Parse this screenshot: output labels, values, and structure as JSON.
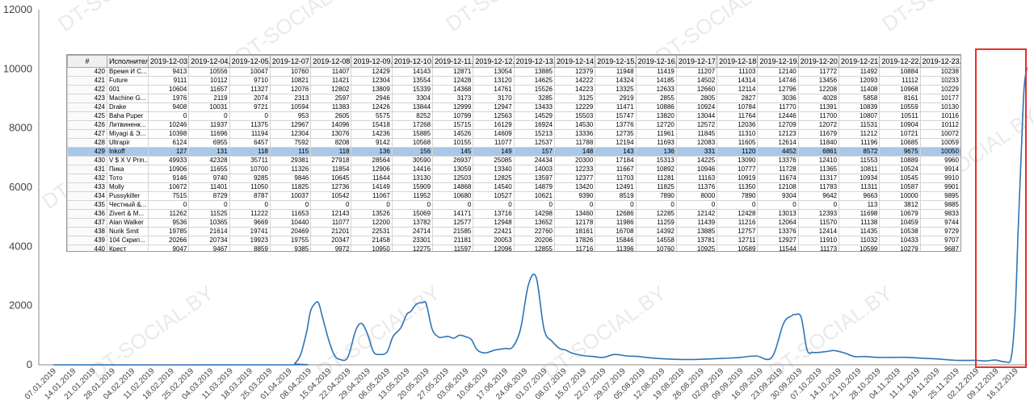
{
  "chart_data": {
    "type": "line",
    "ylim": [
      0,
      12000
    ],
    "yticks": [
      0,
      2000,
      4000,
      6000,
      8000,
      10000,
      12000
    ],
    "grid": false,
    "color": "#2e75b6",
    "xlabels": [
      "07.01.2019",
      "14.01.2019",
      "21.01.2019",
      "28.01.2019",
      "04.02.2019",
      "11.02.2019",
      "18.02.2019",
      "25.02.2019",
      "04.03.2019",
      "11.03.2019",
      "18.03.2019",
      "25.03.2019",
      "01.04.2019",
      "08.04.2019",
      "15.04.2019",
      "22.04.2019",
      "29.04.2019",
      "06.05.2019",
      "13.05.2019",
      "20.05.2019",
      "27.05.2019",
      "03.06.2019",
      "10.06.2019",
      "17.06.2019",
      "24.06.2019",
      "01.07.2019",
      "08.07.2019",
      "15.07.2019",
      "22.07.2019",
      "29.07.2019",
      "05.08.2019",
      "12.08.2019",
      "19.08.2019",
      "26.08.2019",
      "02.09.2019",
      "09.09.2019",
      "16.09.2019",
      "23.09.2019",
      "30.09.2019",
      "07.10.2019",
      "14.10.2019",
      "21.10.2019",
      "28.10.2019",
      "04.11.2019",
      "11.11.2019",
      "18.11.2019",
      "25.11.2019",
      "02.12.2019",
      "09.12.2019",
      "16.12.2019"
    ],
    "x": [
      0,
      12,
      12.3,
      12.6,
      12.9,
      13.1,
      13.3,
      13.5,
      13.7,
      14.0,
      14.3,
      14.6,
      15.0,
      15.4,
      15.7,
      16.0,
      16.3,
      16.6,
      17.0,
      17.3,
      17.7,
      18.0,
      18.2,
      18.5,
      18.8,
      19.0,
      19.3,
      19.6,
      19.8,
      20.1,
      20.4,
      20.7,
      21.0,
      21.3,
      21.6,
      22.0,
      22.5,
      23.0,
      23.4,
      23.8,
      24.2,
      24.6,
      25.0,
      25.4,
      25.8,
      26.1,
      26.4,
      26.7,
      27.1,
      27.5,
      28.0,
      28.6,
      29.2,
      29.8,
      30.5,
      31.2,
      32.0,
      32.7,
      33.5,
      34.2,
      35.0,
      35.8,
      36.6,
      37.2,
      37.6,
      37.8,
      38.1,
      38.4,
      38.7,
      39.0,
      39.4,
      39.8,
      40.3,
      40.8,
      41.3,
      42.0,
      42.8,
      43.5,
      44.3,
      45.0,
      46.0,
      47.0,
      47.5,
      48.0,
      48.5,
      48.8,
      49.0,
      49.15,
      49.3,
      49.45,
      49.6
    ],
    "y": [
      0,
      0,
      50,
      350,
      1100,
      1800,
      2050,
      2100,
      1650,
      900,
      350,
      180,
      250,
      1150,
      1400,
      1050,
      450,
      350,
      430,
      950,
      1250,
      1700,
      1800,
      2050,
      2100,
      2050,
      1200,
      950,
      930,
      960,
      900,
      1000,
      950,
      850,
      500,
      400,
      500,
      550,
      600,
      1200,
      2700,
      2950,
      1200,
      800,
      550,
      500,
      400,
      350,
      300,
      280,
      250,
      350,
      300,
      280,
      230,
      200,
      180,
      180,
      200,
      220,
      250,
      300,
      250,
      1400,
      1650,
      1700,
      1600,
      500,
      420,
      420,
      450,
      480,
      400,
      280,
      280,
      250,
      250,
      250,
      220,
      200,
      150,
      150,
      130,
      160,
      100,
      250,
      1800,
      4500,
      7000,
      9300,
      10050
    ],
    "table": {
      "headers": [
        "#",
        "Исполнитель",
        "2019-12-03...",
        "2019-12-04...",
        "2019-12-05...",
        "2019-12-07...",
        "2019-12-08...",
        "2019-12-09...",
        "2019-12-10...",
        "2019-12-11...",
        "2019-12-12...",
        "2019-12-13...",
        "2019-12-14...",
        "2019-12-15...",
        "2019-12-16...",
        "2019-12-17...",
        "2019-12-18...",
        "2019-12-19...",
        "2019-12-20...",
        "2019-12-21...",
        "2019-12-22...",
        "2019-12-23..."
      ],
      "selected_index": 9,
      "rows": [
        [
          "420",
          "Время И С...",
          "9413",
          "10556",
          "10047",
          "10760",
          "11407",
          "12429",
          "14143",
          "12871",
          "13054",
          "13885",
          "12379",
          "11948",
          "11419",
          "11207",
          "11103",
          "12140",
          "11772",
          "11492",
          "10884",
          "10238"
        ],
        [
          "421",
          "Future",
          "9111",
          "10112",
          "9710",
          "10821",
          "11421",
          "12304",
          "13554",
          "12428",
          "13120",
          "14625",
          "14222",
          "14324",
          "14185",
          "14502",
          "14314",
          "14746",
          "13456",
          "12093",
          "11112",
          "10233"
        ],
        [
          "422",
          "001",
          "10604",
          "11657",
          "11327",
          "12076",
          "12802",
          "13809",
          "15339",
          "14368",
          "14761",
          "15526",
          "14223",
          "13325",
          "12633",
          "12660",
          "12114",
          "12796",
          "12208",
          "11408",
          "10968",
          "10229"
        ],
        [
          "423",
          "Machine G...",
          "1976",
          "2119",
          "2074",
          "2313",
          "2597",
          "2946",
          "3304",
          "3173",
          "3170",
          "3285",
          "3125",
          "2919",
          "2855",
          "2805",
          "2827",
          "3036",
          "4028",
          "5858",
          "8161",
          "10177"
        ],
        [
          "424",
          "Drake",
          "9408",
          "10031",
          "9721",
          "10594",
          "11383",
          "12426",
          "13844",
          "12999",
          "12947",
          "13433",
          "12229",
          "11471",
          "10886",
          "10924",
          "10784",
          "11770",
          "11391",
          "10839",
          "10559",
          "10130"
        ],
        [
          "425",
          "Baha Puper",
          "0",
          "0",
          "0",
          "953",
          "2605",
          "5575",
          "8252",
          "10799",
          "12563",
          "14529",
          "15503",
          "15747",
          "13820",
          "13044",
          "11764",
          "12446",
          "11700",
          "10807",
          "10511",
          "10116"
        ],
        [
          "426",
          "Литвиненк...",
          "10246",
          "11937",
          "11375",
          "12967",
          "14096",
          "15418",
          "17268",
          "15715",
          "16129",
          "16924",
          "14530",
          "13776",
          "12720",
          "12572",
          "12036",
          "12709",
          "12072",
          "11531",
          "10904",
          "10112"
        ],
        [
          "427",
          "Miyagi & Э...",
          "10398",
          "11696",
          "11194",
          "12304",
          "13076",
          "14236",
          "15885",
          "14526",
          "14609",
          "15213",
          "13336",
          "12735",
          "11961",
          "11845",
          "11310",
          "12123",
          "11679",
          "11212",
          "10721",
          "10072"
        ],
        [
          "428",
          "Ultrapir",
          "6124",
          "6955",
          "6457",
          "7592",
          "8208",
          "9142",
          "10568",
          "10155",
          "11077",
          "12537",
          "11788",
          "12194",
          "11693",
          "12083",
          "11605",
          "12614",
          "11840",
          "11196",
          "10685",
          "10059"
        ],
        [
          "429",
          "Inkoff",
          "127",
          "131",
          "118",
          "115",
          "118",
          "136",
          "156",
          "145",
          "149",
          "157",
          "148",
          "143",
          "136",
          "331",
          "1120",
          "4452",
          "6861",
          "8572",
          "9675",
          "10050"
        ],
        [
          "430",
          "V $ X V Prin...",
          "49933",
          "42328",
          "35711",
          "29381",
          "27918",
          "28564",
          "30590",
          "26937",
          "25085",
          "24434",
          "20300",
          "17184",
          "15313",
          "14225",
          "13090",
          "13376",
          "12410",
          "11553",
          "10889",
          "9960"
        ],
        [
          "431",
          "Пика",
          "10906",
          "11655",
          "10700",
          "11326",
          "11854",
          "12906",
          "14416",
          "13059",
          "13340",
          "14003",
          "12233",
          "11667",
          "10892",
          "10946",
          "10777",
          "11728",
          "11365",
          "10811",
          "10524",
          "9914"
        ],
        [
          "432",
          "Тото",
          "9146",
          "9740",
          "9285",
          "9846",
          "10645",
          "11644",
          "13130",
          "12503",
          "12825",
          "13597",
          "12377",
          "11703",
          "11281",
          "11163",
          "10919",
          "11674",
          "11317",
          "10934",
          "10545",
          "9910"
        ],
        [
          "433",
          "Molly",
          "10672",
          "11401",
          "11050",
          "11825",
          "12736",
          "14149",
          "15909",
          "14868",
          "14540",
          "14879",
          "13420",
          "12491",
          "11825",
          "11376",
          "11350",
          "12108",
          "11783",
          "11311",
          "10587",
          "9901"
        ],
        [
          "434",
          "Pussykiller",
          "7515",
          "8729",
          "8787",
          "10037",
          "10542",
          "11067",
          "11952",
          "10680",
          "10527",
          "10621",
          "9390",
          "8519",
          "7890",
          "8000",
          "7890",
          "9304",
          "9642",
          "9663",
          "10000",
          "9895"
        ],
        [
          "435",
          "Честный &...",
          "0",
          "0",
          "0",
          "0",
          "0",
          "0",
          "0",
          "0",
          "0",
          "0",
          "0",
          "0",
          "0",
          "0",
          "0",
          "0",
          "0",
          "113",
          "3812",
          "9885"
        ],
        [
          "436",
          "Zivert & M...",
          "11262",
          "11525",
          "11222",
          "11653",
          "12143",
          "13526",
          "15069",
          "14171",
          "13716",
          "14298",
          "13460",
          "12686",
          "12285",
          "12142",
          "12428",
          "13013",
          "12393",
          "11698",
          "10679",
          "9833"
        ],
        [
          "437",
          "Alan Walker",
          "9536",
          "10365",
          "9669",
          "10440",
          "11077",
          "12200",
          "13782",
          "12577",
          "12948",
          "13652",
          "12178",
          "11986",
          "11259",
          "11439",
          "11216",
          "12064",
          "11570",
          "11138",
          "10459",
          "9744"
        ],
        [
          "438",
          "Nurik Smit",
          "19785",
          "21614",
          "19741",
          "20469",
          "21201",
          "22531",
          "24714",
          "21585",
          "22421",
          "22760",
          "18161",
          "16708",
          "14392",
          "13885",
          "12757",
          "13376",
          "12414",
          "11435",
          "10538",
          "9729"
        ],
        [
          "439",
          "104 Скрип...",
          "20266",
          "20734",
          "19923",
          "19755",
          "20347",
          "21458",
          "23301",
          "21181",
          "20053",
          "20206",
          "17826",
          "15846",
          "14558",
          "13781",
          "12711",
          "12927",
          "11910",
          "11032",
          "10433",
          "9707"
        ],
        [
          "440",
          "Крест",
          "9047",
          "9467",
          "8859",
          "9385",
          "9972",
          "10950",
          "12275",
          "11597",
          "12096",
          "12855",
          "11716",
          "11396",
          "10760",
          "10925",
          "10589",
          "11544",
          "11173",
          "10599",
          "10279",
          "9687"
        ]
      ]
    }
  }
}
